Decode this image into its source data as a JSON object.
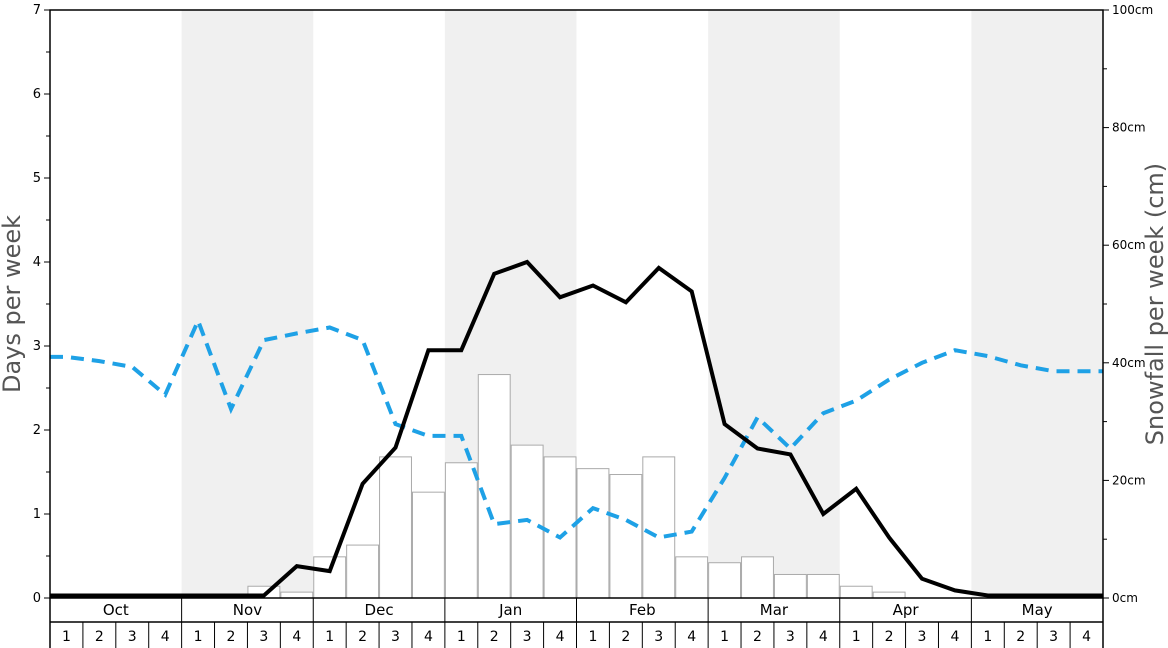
{
  "chart_data": {
    "type": "bar",
    "ylabel": "Days per week",
    "y2label": "Snowfall per week (cm)",
    "ylim": [
      0,
      7
    ],
    "y2lim": [
      0,
      100
    ],
    "yticks": [
      "0",
      "1",
      "2",
      "3",
      "4",
      "5",
      "6",
      "7"
    ],
    "y2ticks": [
      "0cm",
      "20cm",
      "40cm",
      "60cm",
      "80cm",
      "100cm"
    ],
    "months": [
      "Oct",
      "Nov",
      "Dec",
      "Jan",
      "Feb",
      "Mar",
      "Apr",
      "May"
    ],
    "week_labels": [
      "1",
      "2",
      "3",
      "4"
    ],
    "colors": {
      "bars_fill": "#ffffff",
      "bars_stroke": "#aaaaaa",
      "days_line": "#000000",
      "snowfall_line": "#1ea1e6",
      "band": "#f0f0f0"
    },
    "series": [
      {
        "kind": "bars",
        "axis": "y2",
        "values": [
          0,
          0,
          0,
          0,
          0,
          0,
          2,
          1,
          7,
          9,
          24,
          18,
          23,
          38,
          26,
          24,
          22,
          21,
          24,
          7,
          6,
          7,
          4,
          4,
          2,
          1,
          0,
          0,
          0,
          0,
          0,
          0
        ]
      },
      {
        "kind": "line",
        "axis": "y",
        "style": "solid",
        "values": [
          0.03,
          0.03,
          0.03,
          0.03,
          0.03,
          0.03,
          0.03,
          0.38,
          0.32,
          1.36,
          1.79,
          2.95,
          2.95,
          3.86,
          4.0,
          3.58,
          3.72,
          3.52,
          3.93,
          3.65,
          2.07,
          1.78,
          1.71,
          1.0,
          1.3,
          0.72,
          0.23,
          0.09,
          0.03,
          0.03,
          0.03,
          0.03
        ]
      },
      {
        "kind": "line",
        "axis": "y",
        "style": "dashed",
        "values": [
          2.87,
          2.82,
          2.75,
          2.42,
          3.3,
          2.25,
          3.07,
          3.15,
          3.22,
          3.07,
          2.07,
          1.93,
          1.93,
          0.88,
          0.93,
          0.72,
          1.07,
          0.93,
          0.72,
          0.79,
          1.43,
          2.15,
          1.78,
          2.2,
          2.35,
          2.6,
          2.8,
          2.95,
          2.88,
          2.77,
          2.7,
          2.7
        ]
      }
    ]
  }
}
